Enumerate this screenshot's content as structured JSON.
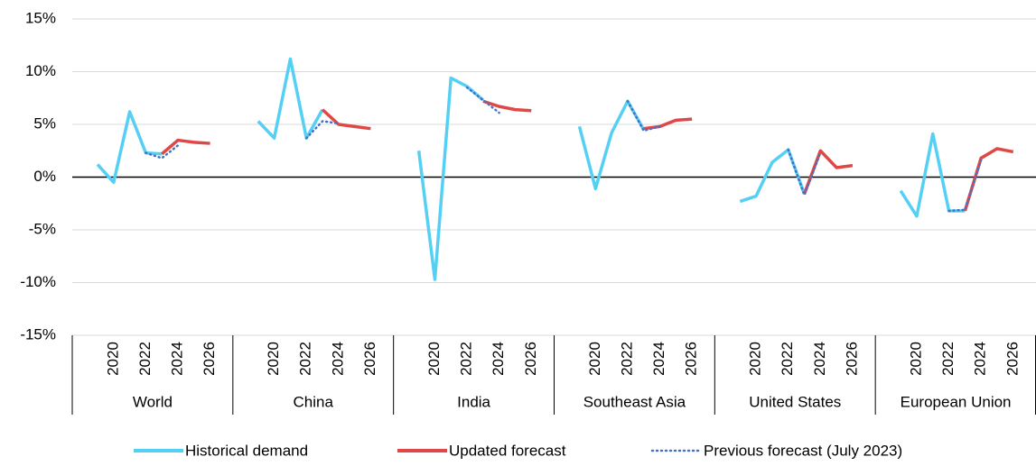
{
  "chart_data": {
    "type": "line",
    "groups": [
      "World",
      "China",
      "India",
      "Southeast Asia",
      "United States",
      "European Union"
    ],
    "categories": [
      null,
      "2020",
      null,
      "2022",
      null,
      "2024",
      null,
      "2026"
    ],
    "ylim": [
      -15,
      15
    ],
    "yticks": [
      {
        "value": -15,
        "label": "-15%"
      },
      {
        "value": -10,
        "label": "-10%"
      },
      {
        "value": -5,
        "label": "-5%"
      },
      {
        "value": 0,
        "label": "0%"
      },
      {
        "value": 5,
        "label": "5%"
      },
      {
        "value": 10,
        "label": "10%"
      },
      {
        "value": 15,
        "label": "15%"
      }
    ],
    "grid": true,
    "legend": "bottom",
    "series": [
      {
        "name": "Historical demand",
        "color": "#55d0f5",
        "style": "solid",
        "values": [
          [
            1.2,
            -0.5,
            6.2,
            2.3,
            2.2,
            null,
            null,
            null
          ],
          [
            5.3,
            3.7,
            11.2,
            3.7,
            6.4,
            null,
            null,
            null
          ],
          [
            2.5,
            -9.7,
            9.4,
            8.6,
            7.3,
            null,
            null,
            null
          ],
          [
            4.8,
            -1.1,
            4.2,
            7.2,
            4.5,
            null,
            null,
            null
          ],
          [
            -2.3,
            -1.8,
            1.4,
            2.6,
            -1.6,
            null,
            null,
            null
          ],
          [
            -1.3,
            -3.7,
            4.1,
            -3.2,
            -3.2,
            null,
            null,
            null
          ]
        ]
      },
      {
        "name": "Updated forecast",
        "color": "#e04848",
        "style": "solid",
        "values": [
          [
            null,
            null,
            null,
            null,
            2.2,
            3.5,
            3.3,
            3.2
          ],
          [
            null,
            null,
            null,
            null,
            6.4,
            5.0,
            4.8,
            4.6
          ],
          [
            null,
            null,
            null,
            null,
            7.2,
            6.7,
            6.4,
            6.3
          ],
          [
            null,
            null,
            null,
            null,
            4.6,
            4.8,
            5.4,
            5.5
          ],
          [
            null,
            null,
            null,
            null,
            -1.6,
            2.5,
            0.9,
            1.1
          ],
          [
            null,
            null,
            null,
            null,
            -3.2,
            1.8,
            2.7,
            2.4
          ]
        ]
      },
      {
        "name": "Previous forecast (July 2023)",
        "color": "#4472c4",
        "style": "dotted",
        "values": [
          [
            null,
            null,
            null,
            2.3,
            1.8,
            3.0,
            null,
            null
          ],
          [
            null,
            null,
            null,
            3.7,
            5.3,
            5.1,
            null,
            null
          ],
          [
            null,
            null,
            null,
            8.5,
            7.3,
            6.1,
            null,
            null
          ],
          [
            null,
            null,
            null,
            7.2,
            4.4,
            4.8,
            null,
            null
          ],
          [
            null,
            null,
            null,
            2.6,
            -1.7,
            2.3,
            null,
            null
          ],
          [
            null,
            null,
            null,
            -3.2,
            -3.1,
            1.6,
            null,
            null
          ]
        ]
      }
    ]
  }
}
